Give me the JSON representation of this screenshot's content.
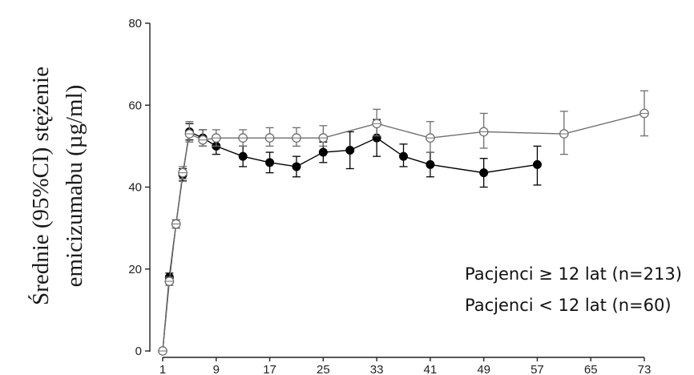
{
  "chart_data": {
    "type": "line",
    "title": "",
    "xlabel": "",
    "ylabel_lines": [
      "Średnie (95%CI) stężenie",
      "emicizumabu (µg/ml)"
    ],
    "xlim": [
      1,
      73
    ],
    "ylim": [
      0,
      80
    ],
    "x_ticks": [
      1,
      9,
      17,
      25,
      33,
      41,
      49,
      57,
      65,
      73
    ],
    "y_ticks": [
      0,
      20,
      40,
      60,
      80
    ],
    "grid": false,
    "legend_position": "bottom-right",
    "legend": [
      "Pacjenci ≥ 12 lat (n=213)",
      "Pacjenci < 12 lat (n=60)"
    ],
    "series": [
      {
        "marker": "filled",
        "color": "#000000",
        "points": [
          {
            "x": 1,
            "y": 0,
            "lo": 0,
            "hi": 0
          },
          {
            "x": 2,
            "y": 18,
            "lo": 17,
            "hi": 19
          },
          {
            "x": 3,
            "y": 31,
            "lo": 30,
            "hi": 32
          },
          {
            "x": 4,
            "y": 43,
            "lo": 41.5,
            "hi": 44.5
          },
          {
            "x": 5,
            "y": 53.5,
            "lo": 51.5,
            "hi": 55.5
          },
          {
            "x": 7,
            "y": 52,
            "lo": 50,
            "hi": 54
          },
          {
            "x": 9,
            "y": 50,
            "lo": 48,
            "hi": 52
          },
          {
            "x": 13,
            "y": 47.5,
            "lo": 45,
            "hi": 50
          },
          {
            "x": 17,
            "y": 46,
            "lo": 43.5,
            "hi": 48.5
          },
          {
            "x": 21,
            "y": 45,
            "lo": 42.5,
            "hi": 47.5
          },
          {
            "x": 25,
            "y": 48.5,
            "lo": 46,
            "hi": 51
          },
          {
            "x": 29,
            "y": 49,
            "lo": 44.5,
            "hi": 53.5
          },
          {
            "x": 33,
            "y": 52,
            "lo": 47.5,
            "hi": 56.5
          },
          {
            "x": 37,
            "y": 47.5,
            "lo": 45,
            "hi": 50.5
          },
          {
            "x": 41,
            "y": 45.5,
            "lo": 42.5,
            "hi": 48.5
          },
          {
            "x": 49,
            "y": 43.5,
            "lo": 40,
            "hi": 47
          },
          {
            "x": 57,
            "y": 45.5,
            "lo": 40.5,
            "hi": 50
          }
        ]
      },
      {
        "marker": "open-crossed",
        "color": "#6e6e6e",
        "points": [
          {
            "x": 1,
            "y": 0,
            "lo": 0,
            "hi": 0
          },
          {
            "x": 2,
            "y": 17,
            "lo": 16,
            "hi": 18
          },
          {
            "x": 3,
            "y": 31,
            "lo": 30,
            "hi": 32
          },
          {
            "x": 4,
            "y": 43.5,
            "lo": 42,
            "hi": 45
          },
          {
            "x": 5,
            "y": 53,
            "lo": 51,
            "hi": 56
          },
          {
            "x": 7,
            "y": 51.5,
            "lo": 50,
            "hi": 54
          },
          {
            "x": 9,
            "y": 52,
            "lo": 50,
            "hi": 54
          },
          {
            "x": 13,
            "y": 52,
            "lo": 50,
            "hi": 54
          },
          {
            "x": 17,
            "y": 52,
            "lo": 50,
            "hi": 54.5
          },
          {
            "x": 21,
            "y": 52,
            "lo": 50,
            "hi": 54.5
          },
          {
            "x": 25,
            "y": 52,
            "lo": 50,
            "hi": 55
          },
          {
            "x": 33,
            "y": 55.5,
            "lo": 52.5,
            "hi": 59
          },
          {
            "x": 41,
            "y": 52,
            "lo": 48.5,
            "hi": 56
          },
          {
            "x": 49,
            "y": 53.5,
            "lo": 49.5,
            "hi": 58
          },
          {
            "x": 61,
            "y": 53,
            "lo": 48,
            "hi": 58.5
          },
          {
            "x": 73,
            "y": 58,
            "lo": 52.5,
            "hi": 63.5
          }
        ]
      }
    ]
  }
}
